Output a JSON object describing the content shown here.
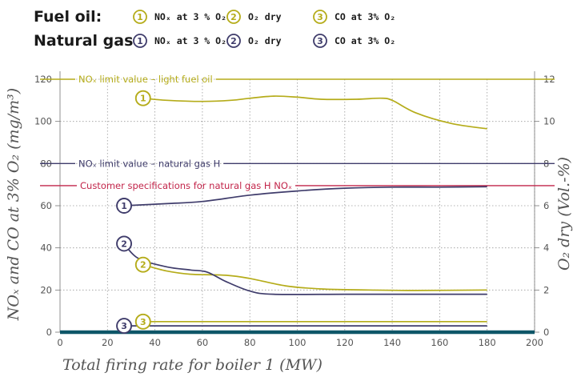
{
  "legend": {
    "groups": [
      {
        "title": "Fuel oil:",
        "color": "#b5ac1a",
        "items": [
          {
            "num": "1",
            "label": "NOₓ at 3 % O₂"
          },
          {
            "num": "2",
            "label": "O₂ dry"
          },
          {
            "num": "3",
            "label": "CO at 3% O₂"
          }
        ]
      },
      {
        "title": "Natural gas:",
        "color": "#3f3c6b",
        "items": [
          {
            "num": "1",
            "label": "NOₓ at 3 % O₂"
          },
          {
            "num": "2",
            "label": "O₂ dry"
          },
          {
            "num": "3",
            "label": "CO at 3% O₂"
          }
        ]
      }
    ]
  },
  "chart_data": {
    "type": "line",
    "xlabel": "Total firing rate for boiler 1 (MW)",
    "ylabel_left": "NOₓ and CO at 3% O₂ (mg/m³)",
    "ylabel_right": "O₂ dry (Vol.-%)",
    "x_range": [
      0,
      200
    ],
    "y_left_range": [
      0,
      120
    ],
    "y_right_range": [
      0,
      12
    ],
    "x_ticks": [
      "0",
      "20",
      "40",
      "60",
      "80",
      "100",
      "120",
      "140",
      "160",
      "180",
      "200"
    ],
    "y_left_ticks": [
      "0",
      "20",
      "40",
      "60",
      "80",
      "100",
      "120"
    ],
    "y_right_ticks": [
      "0",
      "2",
      "4",
      "6",
      "8",
      "10",
      "12"
    ],
    "grid": true,
    "reference_lines": [
      {
        "label": "NOₓ limit value – light fuel oil",
        "y": 120,
        "color": "#b5ac1a"
      },
      {
        "label": "NOₓ limit value – natural gas H",
        "y": 80,
        "color": "#3f3c6b"
      },
      {
        "label": "Customer specifications for natural gas H NOₓ",
        "y": 69.5,
        "color": "#c2254a"
      }
    ],
    "series": [
      {
        "marker": "1",
        "fuel": "oil",
        "axis": "left",
        "color": "#b5ac1a",
        "points": [
          [
            35,
            111
          ],
          [
            45,
            110
          ],
          [
            60,
            109.5
          ],
          [
            72,
            110
          ],
          [
            80,
            111
          ],
          [
            90,
            112
          ],
          [
            100,
            111.5
          ],
          [
            110,
            110.5
          ],
          [
            125,
            110.5
          ],
          [
            135,
            111
          ],
          [
            140,
            110
          ],
          [
            150,
            104
          ],
          [
            165,
            99
          ],
          [
            180,
            96.5
          ]
        ]
      },
      {
        "marker": "2",
        "fuel": "oil",
        "axis": "left",
        "color": "#b5ac1a",
        "points": [
          [
            35,
            32
          ],
          [
            45,
            29
          ],
          [
            55,
            27.5
          ],
          [
            70,
            27
          ],
          [
            80,
            25.5
          ],
          [
            95,
            22
          ],
          [
            110,
            20.5
          ],
          [
            130,
            20
          ],
          [
            150,
            19.8
          ],
          [
            180,
            20
          ]
        ]
      },
      {
        "marker": "3",
        "fuel": "oil",
        "axis": "left",
        "color": "#b5ac1a",
        "points": [
          [
            35,
            5
          ],
          [
            180,
            5
          ]
        ]
      },
      {
        "marker": "1",
        "fuel": "gas",
        "axis": "left",
        "color": "#3f3c6b",
        "points": [
          [
            27,
            60
          ],
          [
            45,
            61
          ],
          [
            60,
            62
          ],
          [
            80,
            65
          ],
          [
            100,
            67
          ],
          [
            120,
            68.3
          ],
          [
            140,
            68.8
          ],
          [
            160,
            68.8
          ],
          [
            180,
            69
          ]
        ]
      },
      {
        "marker": "2",
        "fuel": "gas",
        "axis": "left",
        "color": "#3f3c6b",
        "points": [
          [
            27,
            42
          ],
          [
            33,
            35
          ],
          [
            45,
            31
          ],
          [
            55,
            29.5
          ],
          [
            62,
            28.5
          ],
          [
            70,
            24
          ],
          [
            80,
            19.5
          ],
          [
            90,
            18
          ],
          [
            120,
            18
          ],
          [
            150,
            18
          ],
          [
            180,
            18
          ]
        ]
      },
      {
        "marker": "3",
        "fuel": "gas",
        "axis": "left",
        "color": "#3f3c6b",
        "points": [
          [
            27,
            3
          ],
          [
            180,
            3
          ]
        ]
      }
    ],
    "baseline": {
      "color": "#0e5668",
      "y": 0
    }
  }
}
